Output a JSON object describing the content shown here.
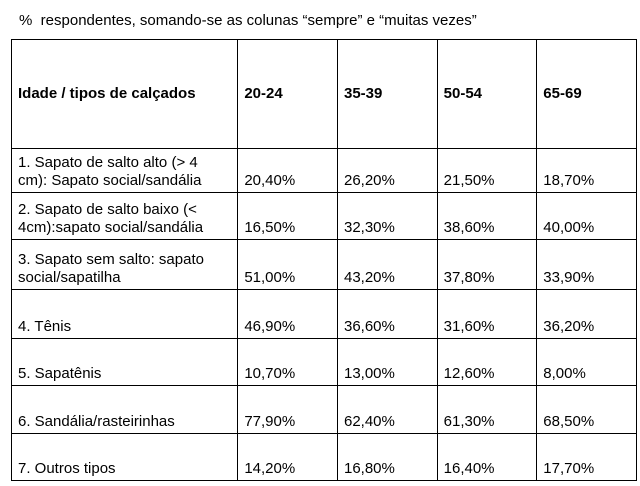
{
  "caption": "%  respondentes, somando-se as colunas “sempre” e “muitas vezes”",
  "table": {
    "headers": [
      "Idade / tipos de calçados",
      "20-24",
      "35-39",
      "50-54",
      "65-69"
    ],
    "rows": [
      {
        "type_line1": "1. Sapato de salto alto (> 4",
        "type_line2": "cm): Sapato social/sandália",
        "values": [
          "20,40%",
          "26,20%",
          "21,50%",
          "18,70%"
        ]
      },
      {
        "type_line1": "2. Sapato de salto baixo (<",
        "type_line2": "4cm):sapato social/sandália",
        "values": [
          "16,50%",
          "32,30%",
          "38,60%",
          "40,00%"
        ]
      },
      {
        "type_line1": "3. Sapato sem salto: sapato",
        "type_line2": "social/sapatilha",
        "values": [
          "51,00%",
          "43,20%",
          "37,80%",
          "33,90%"
        ]
      },
      {
        "type_line1": "4. Tênis",
        "values": [
          "46,90%",
          "36,60%",
          "31,60%",
          "36,20%"
        ]
      },
      {
        "type_line1": "5. Sapatênis",
        "values": [
          "10,70%",
          "13,00%",
          "12,60%",
          "8,00%"
        ]
      },
      {
        "type_line1": "6. Sandália/rasteirinhas",
        "values": [
          "77,90%",
          "62,40%",
          "61,30%",
          "68,50%"
        ]
      },
      {
        "type_line1": "7. Outros tipos",
        "values": [
          "14,20%",
          "16,80%",
          "16,40%",
          "17,70%"
        ]
      }
    ]
  }
}
